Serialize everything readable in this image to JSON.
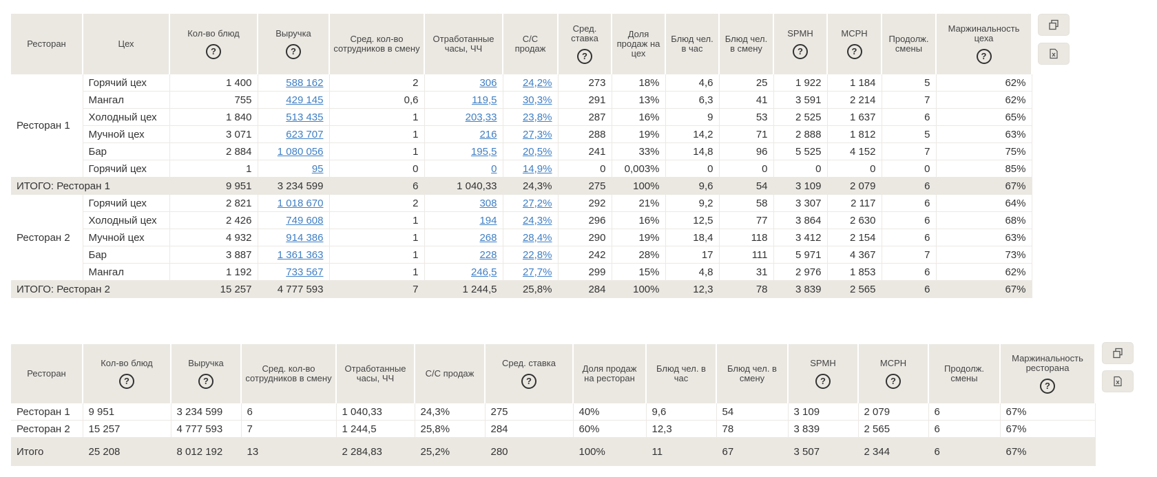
{
  "help_glyph": "?",
  "tools": {
    "copy_icon": "copy-icon",
    "excel_icon": "excel-export-icon"
  },
  "accent_color": "#3f7fc4",
  "header_color": "#ebe8e2",
  "table1": {
    "headers": [
      "Ресторан",
      "Цех",
      "Кол-во блюд",
      "Выручка",
      "Сред. кол-во сотрудников в смену",
      "Отработанные часы, ЧЧ",
      "С/С продаж",
      "Сред. ставка",
      "Доля продаж на цех",
      "Блюд чел. в час",
      "Блюд чел. в смену",
      "SPMH",
      "MCPH",
      "Продолж. смены",
      "Маржинальность цеха"
    ],
    "groups": [
      {
        "restaurant": "Ресторан 1",
        "rows": [
          [
            "Горячий цех",
            "1 400",
            "588 162",
            "2",
            "306",
            "24,2%",
            "273",
            "18%",
            "4,6",
            "25",
            "1 922",
            "1 184",
            "5",
            "62%"
          ],
          [
            "Мангал",
            "755",
            "429 145",
            "0,6",
            "119,5",
            "30,3%",
            "291",
            "13%",
            "6,3",
            "41",
            "3 591",
            "2 214",
            "7",
            "62%"
          ],
          [
            "Холодный цех",
            "1 840",
            "513 435",
            "1",
            "203,33",
            "23,8%",
            "287",
            "16%",
            "9",
            "53",
            "2 525",
            "1 637",
            "6",
            "65%"
          ],
          [
            "Мучной цех",
            "3 071",
            "623 707",
            "1",
            "216",
            "27,3%",
            "288",
            "19%",
            "14,2",
            "71",
            "2 888",
            "1 812",
            "5",
            "63%"
          ],
          [
            "Бар",
            "2 884",
            "1 080 056",
            "1",
            "195,5",
            "20,5%",
            "241",
            "33%",
            "14,8",
            "96",
            "5 525",
            "4 152",
            "7",
            "75%"
          ],
          [
            "Горячий цех",
            "1",
            "95",
            "0",
            "0",
            "14,9%",
            "0",
            "0,003%",
            "0",
            "0",
            "0",
            "0",
            "0",
            "85%"
          ]
        ],
        "total": [
          "ИТОГО: Ресторан 1",
          "9 951",
          "3 234 599",
          "6",
          "1 040,33",
          "24,3%",
          "275",
          "100%",
          "9,6",
          "54",
          "3 109",
          "2 079",
          "6",
          "67%"
        ]
      },
      {
        "restaurant": "Ресторан 2",
        "rows": [
          [
            "Горячий цех",
            "2 821",
            "1 018 670",
            "2",
            "308",
            "27,2%",
            "292",
            "21%",
            "9,2",
            "58",
            "3 307",
            "2 117",
            "6",
            "64%"
          ],
          [
            "Холодный цех",
            "2 426",
            "749 608",
            "1",
            "194",
            "24,3%",
            "296",
            "16%",
            "12,5",
            "77",
            "3 864",
            "2 630",
            "6",
            "68%"
          ],
          [
            "Мучной цех",
            "4 932",
            "914 386",
            "1",
            "268",
            "28,4%",
            "290",
            "19%",
            "18,4",
            "118",
            "3 412",
            "2 154",
            "6",
            "63%"
          ],
          [
            "Бар",
            "3 887",
            "1 361 363",
            "1",
            "228",
            "22,8%",
            "242",
            "28%",
            "17",
            "111",
            "5 971",
            "4 367",
            "7",
            "73%"
          ],
          [
            "Мангал",
            "1 192",
            "733 567",
            "1",
            "246,5",
            "27,7%",
            "299",
            "15%",
            "4,8",
            "31",
            "2 976",
            "1 853",
            "6",
            "62%"
          ]
        ],
        "total": [
          "ИТОГО: Ресторан 2",
          "15 257",
          "4 777 593",
          "7",
          "1 244,5",
          "25,8%",
          "284",
          "100%",
          "12,3",
          "78",
          "3 839",
          "2 565",
          "6",
          "67%"
        ]
      }
    ]
  },
  "table2": {
    "headers": [
      "Ресторан",
      "Кол-во блюд",
      "Выручка",
      "Сред. кол-во сотрудников в смену",
      "Отработанные часы, ЧЧ",
      "С/С продаж",
      "Сред. ставка",
      "Доля продаж на ресторан",
      "Блюд чел. в час",
      "Блюд чел. в смену",
      "SPMH",
      "MCPH",
      "Продолж. смены",
      "Маржинальность ресторана"
    ],
    "rows": [
      [
        "Ресторан 1",
        "9 951",
        "3 234 599",
        "6",
        "1 040,33",
        "24,3%",
        "275",
        "40%",
        "9,6",
        "54",
        "3 109",
        "2 079",
        "6",
        "67%"
      ],
      [
        "Ресторан 2",
        "15 257",
        "4 777 593",
        "7",
        "1 244,5",
        "25,8%",
        "284",
        "60%",
        "12,3",
        "78",
        "3 839",
        "2 565",
        "6",
        "67%"
      ]
    ],
    "total": [
      "Итого",
      "25 208",
      "8 012 192",
      "13",
      "2 284,83",
      "25,2%",
      "280",
      "100%",
      "11",
      "67",
      "3 507",
      "2 344",
      "6",
      "67%"
    ]
  }
}
